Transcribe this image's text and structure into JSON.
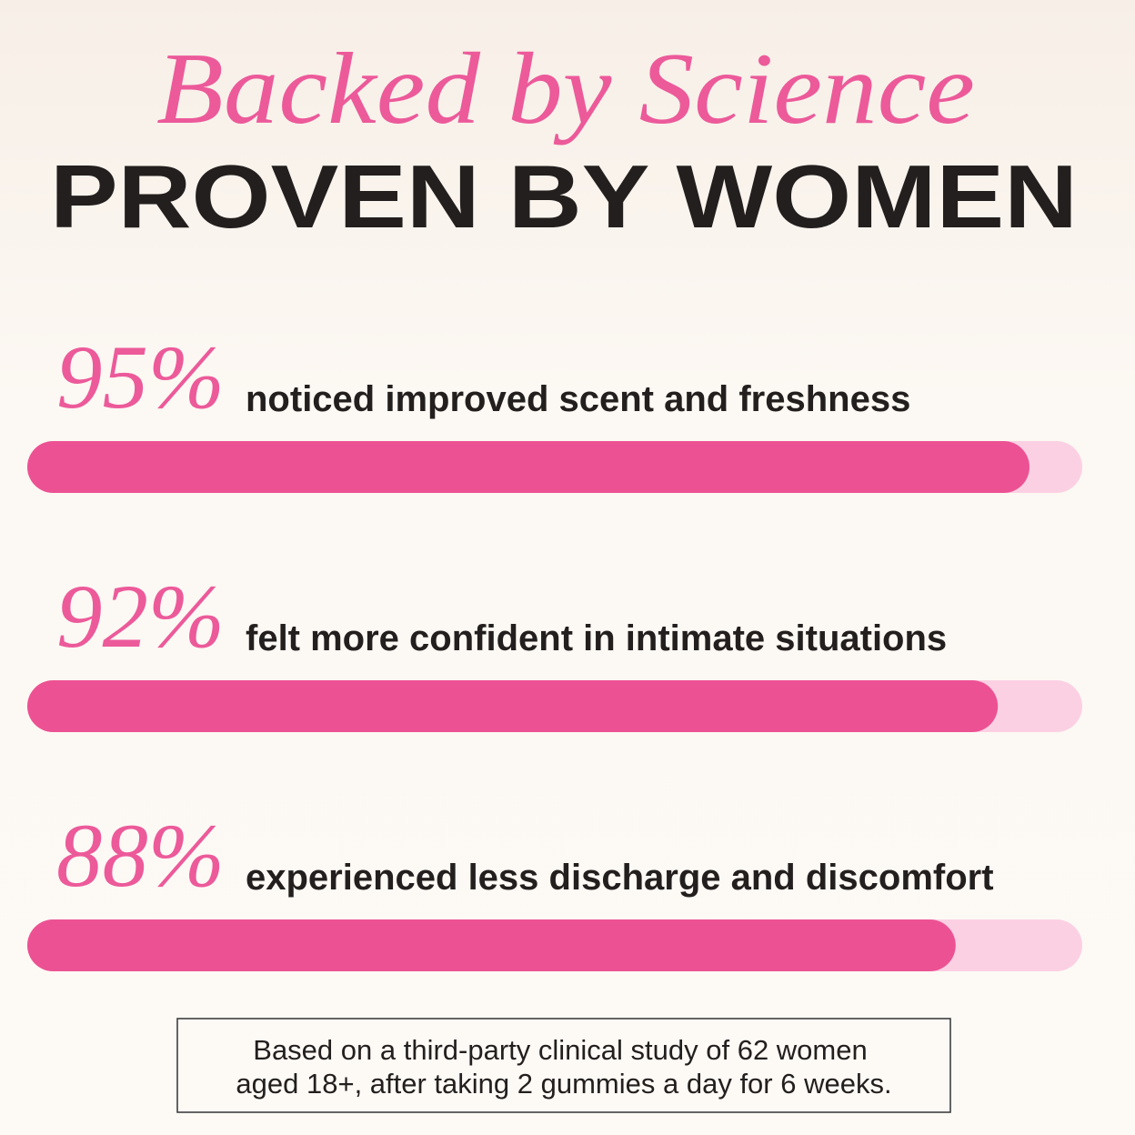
{
  "chart_data": {
    "type": "bar",
    "title": "Backed by Science",
    "subtitle": "PROVEN BY WOMEN",
    "categories": [
      "noticed improved scent and freshness",
      "felt more confident in intimate situations",
      "experienced less discharge and discomfort"
    ],
    "values": [
      95,
      92,
      88
    ],
    "value_labels": [
      "95%",
      "92%",
      "88%"
    ],
    "xlim": [
      0,
      100
    ],
    "color": "#ec5293",
    "track_color": "#fcd0e3",
    "note": [
      "Based on a third-party clinical study of 62 women",
      "aged 18+, after taking 2 gummies a day for 6 weeks."
    ]
  }
}
